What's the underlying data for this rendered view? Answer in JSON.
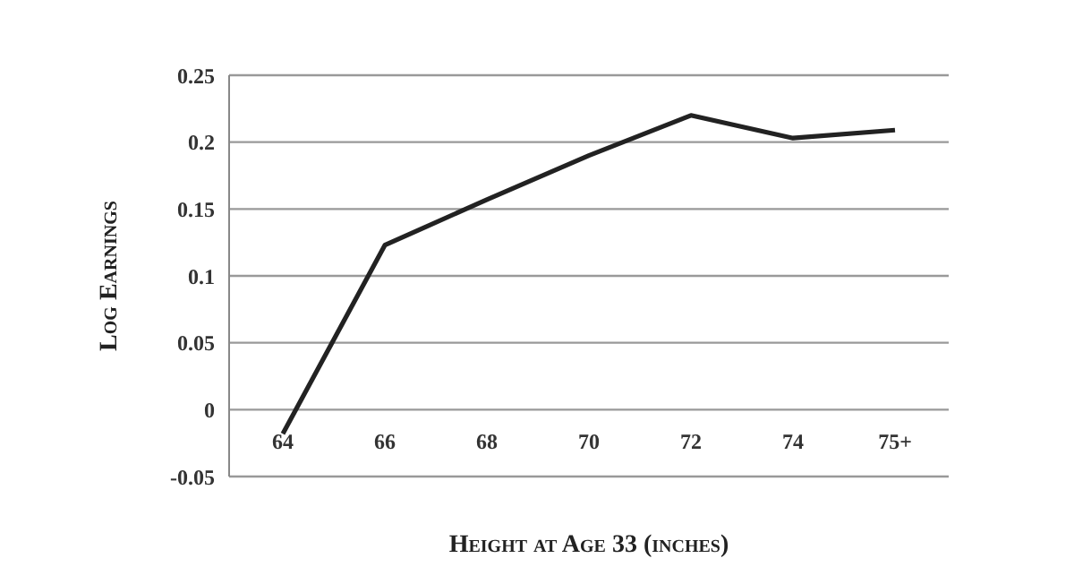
{
  "chart_data": {
    "type": "line",
    "xlabel": "Height at Age 33 (inches)",
    "ylabel": "Log Earnings",
    "categories": [
      "64",
      "66",
      "68",
      "70",
      "72",
      "74",
      "75+"
    ],
    "series": [
      {
        "color": "#222222",
        "values": [
          -0.018,
          0.123,
          0.157,
          0.19,
          0.22,
          0.203,
          0.209
        ]
      }
    ],
    "ylim": [
      -0.05,
      0.25
    ],
    "yticks": [
      -0.05,
      0,
      0.05,
      0.1,
      0.15,
      0.2,
      0.25
    ],
    "grid": "y",
    "legend": false,
    "marker": "none",
    "line_style": "solid"
  }
}
